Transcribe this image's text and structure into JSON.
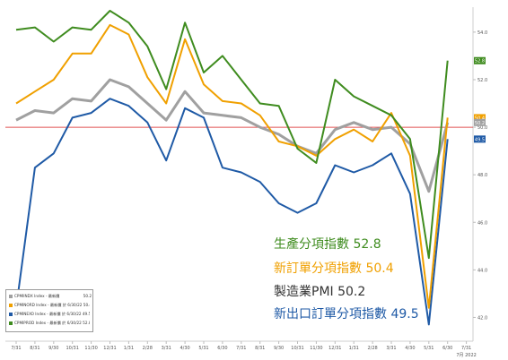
{
  "chart_data": {
    "type": "line",
    "title": "",
    "xlabel": "",
    "ylabel": "",
    "ylim": [
      41.0,
      55.0
    ],
    "y_ticks": [
      42.0,
      44.0,
      46.0,
      48.0,
      50.0,
      52.0,
      54.0
    ],
    "categories": [
      "7/31",
      "8/31",
      "9/30",
      "10/31",
      "11/30",
      "12/31",
      "1/31",
      "2/28",
      "3/31",
      "4/30",
      "5/31",
      "6/30",
      "7/31",
      "8/31",
      "9/30",
      "10/31",
      "11/30",
      "12/31",
      "1/31",
      "2/28",
      "3/31",
      "4/30",
      "5/31",
      "6/30"
    ],
    "x_tick_labels": [
      "7/31",
      "8/31",
      "9/30",
      "10/31",
      "11/30",
      "12/31",
      "1/31",
      "2/28",
      "3/31",
      "4/30",
      "5/31",
      "6/30",
      "7/31",
      "8/31",
      "9/30",
      "10/31",
      "11/30",
      "12/31",
      "1/31",
      "2/28",
      "3/31",
      "4/30",
      "5/31",
      "6/30",
      "7/31"
    ],
    "x_end_label": "7月 2022",
    "grid": false,
    "reference_line": 50.0,
    "series": [
      {
        "key": "prod",
        "color": "#3f8c1f",
        "values": [
          54.1,
          54.2,
          53.6,
          54.2,
          54.1,
          54.9,
          54.4,
          53.4,
          51.6,
          54.4,
          52.3,
          53.0,
          52.0,
          51.0,
          50.9,
          49.1,
          48.5,
          52.0,
          51.3,
          50.9,
          50.5,
          49.5,
          44.5,
          52.8
        ]
      },
      {
        "key": "neworder",
        "color": "#f0a000",
        "values": [
          51.0,
          51.5,
          52.0,
          53.1,
          53.1,
          54.3,
          53.9,
          52.1,
          51.0,
          53.7,
          51.8,
          51.1,
          51.0,
          50.5,
          49.4,
          49.2,
          48.8,
          49.5,
          49.9,
          49.4,
          50.6,
          48.8,
          42.4,
          50.4
        ]
      },
      {
        "key": "pmi",
        "color": "#a0a0a0",
        "values": [
          50.3,
          50.7,
          50.6,
          51.2,
          51.1,
          52.0,
          51.7,
          51.0,
          50.3,
          51.5,
          50.6,
          50.5,
          50.4,
          50.0,
          49.7,
          49.2,
          48.9,
          49.9,
          50.2,
          49.9,
          50.0,
          49.3,
          47.3,
          50.2
        ]
      },
      {
        "key": "exportorder",
        "color": "#1f5aa6",
        "values": [
          42.4,
          48.3,
          48.9,
          50.4,
          50.6,
          51.2,
          50.9,
          50.2,
          48.6,
          50.8,
          50.4,
          48.3,
          48.1,
          47.7,
          46.8,
          46.4,
          46.8,
          48.4,
          48.1,
          48.4,
          48.9,
          47.2,
          41.7,
          49.5
        ]
      }
    ],
    "end_labels": [
      "52.8",
      "50.4",
      "50.2",
      "49.5"
    ],
    "legend": {
      "placement": "bottom-left",
      "rows": [
        {
          "color": "#a0a0a0",
          "name": "CPMIINDX Index - 最新價",
          "value": "50.2"
        },
        {
          "color": "#f0a000",
          "name": "CPMINORD Index - 最新價 於 6/30/22 50.4",
          "value": ""
        },
        {
          "color": "#1f5aa6",
          "name": "CPMINEXO Index - 最新價 於 6/30/22 49.5",
          "value": ""
        },
        {
          "color": "#3f8c1f",
          "name": "CPMIPROD Index - 最新價 於 6/30/22 52.8",
          "value": ""
        }
      ]
    },
    "annotations": [
      {
        "text": "生產分項指數 52.8",
        "color": "#3f8c1f"
      },
      {
        "text": "新訂單分項指數 50.4",
        "color": "#f0a000"
      },
      {
        "text": "製造業PMI 50.2",
        "color": "#333333"
      },
      {
        "text": "新出口訂單分項指數 49.5",
        "color": "#1f5aa6"
      }
    ]
  }
}
